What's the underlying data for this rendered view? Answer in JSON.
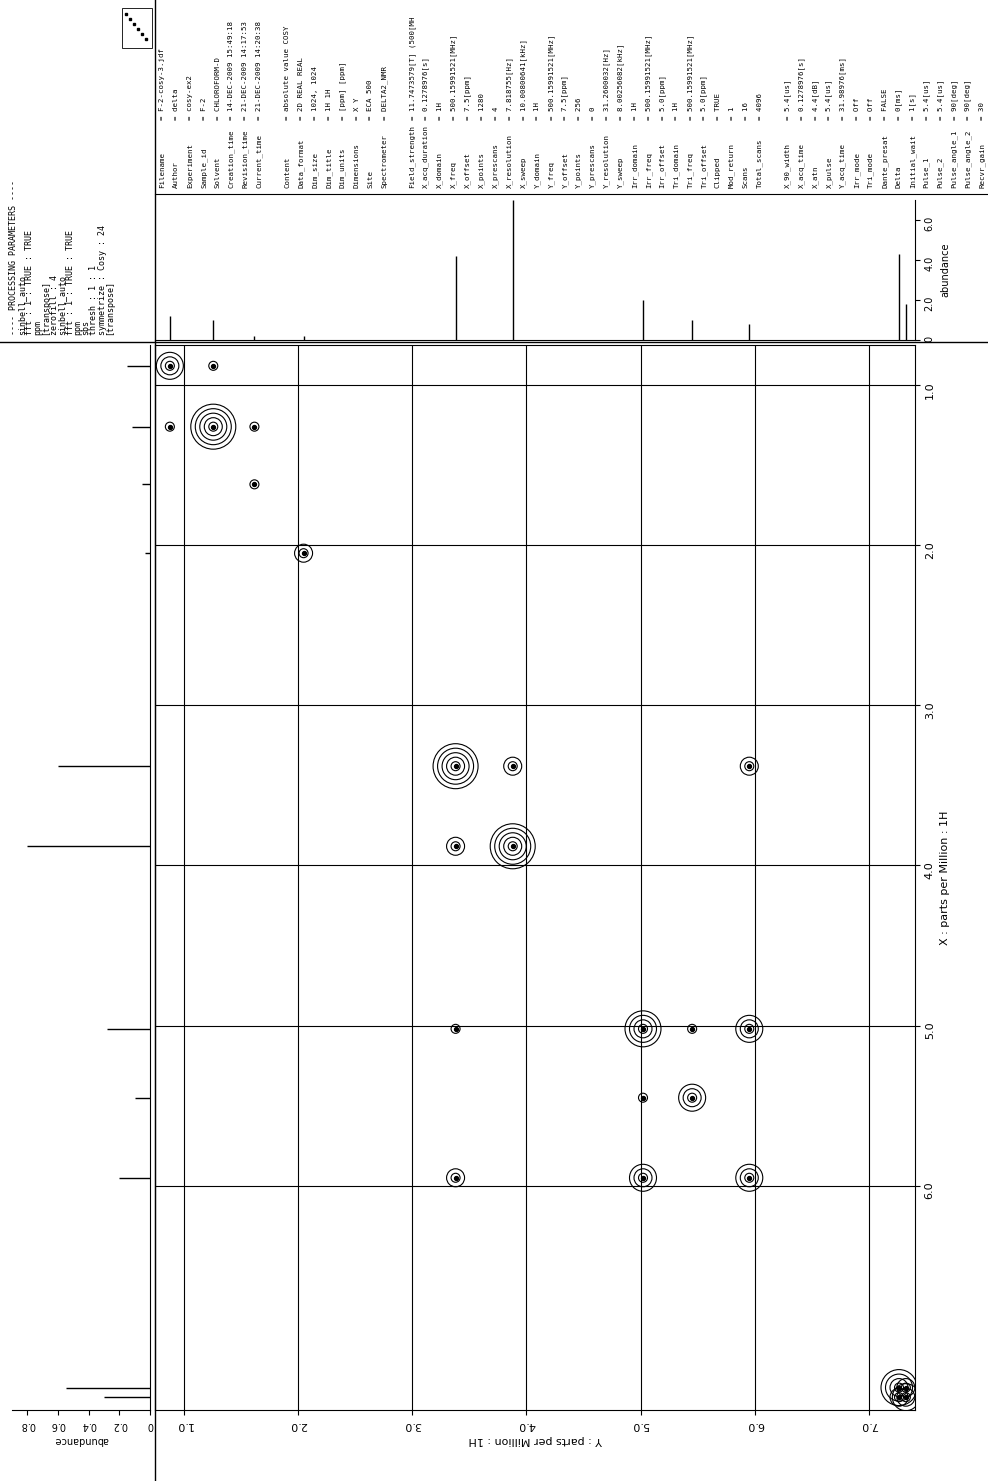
{
  "processing_parameters": [
    "---- PROCESSING PARAMETERS ----",
    "sinbell_auto",
    "fft : 1 : TRUE : TRUE",
    "ppm",
    "[transpose]",
    "zerofill : 4",
    "sinbell_auto",
    "fft : 1 : TRUE : TRUE",
    "ppm",
    "sbs",
    "thresh : 1 : 1",
    "symmetrize : Cosy : 24",
    "[transpose]"
  ],
  "parameters": [
    [
      [
        "Filename",
        "= F-2-cosy-3.jdf"
      ],
      [
        "Author",
        "= delta"
      ],
      [
        "Experiment",
        "= cosy-ex2"
      ],
      [
        "Sample_id",
        "= F-2"
      ],
      [
        "Solvent",
        "= CHLOROFORM-D"
      ],
      [
        "Creation_time",
        "= 14-DEC-2009 15:49:18"
      ],
      [
        "Revision_time",
        "= 21-DEC-2009 14:17:53"
      ],
      [
        "Current_time",
        "= 21-DEC-2009 14:20:38"
      ]
    ],
    [
      [
        "Content",
        "= absolute value COSY"
      ],
      [
        "Data_format",
        "= 2D REAL REAL"
      ],
      [
        "Dim_size",
        "= 1024, 1024"
      ],
      [
        "Dim_title",
        "= 1H 1H"
      ],
      [
        "Dim_units",
        "= [ppm] [ppm]"
      ],
      [
        "Dimensions",
        "= X Y"
      ],
      [
        "Site",
        "= ECA 500"
      ],
      [
        "Spectrometer",
        "= DELTA2_NMR"
      ]
    ],
    [
      [
        "Field_strength",
        "= 11.7473579[T] (500[MH"
      ],
      [
        "X_acq_duration",
        "= 0.1278976[s]"
      ],
      [
        "X_domain",
        "= 1H"
      ],
      [
        "X_freq",
        "= 500.15991521[MHz]"
      ],
      [
        "X_offset",
        "= 7.5[ppm]"
      ],
      [
        "X_points",
        "= 1280"
      ],
      [
        "X_prescans",
        "= 4"
      ],
      [
        "X_resolution",
        "= 7.818755[Hz]"
      ],
      [
        "X_sweep",
        "= 10.00800641[kHz]"
      ],
      [
        "Y_domain",
        "= 1H"
      ],
      [
        "Y_freq",
        "= 500.15991521[MHz]"
      ],
      [
        "Y_offset",
        "= 7.5[ppm]"
      ],
      [
        "Y_points",
        "= 256"
      ],
      [
        "Y_prescans",
        "= 0"
      ],
      [
        "Y_resolution",
        "= 31.2600032[Hz]"
      ],
      [
        "Y_sweep",
        "= 8.00256082[kHz]"
      ],
      [
        "Irr_domain",
        "= 1H"
      ],
      [
        "Irr_freq",
        "= 500.15991521[MHz]"
      ],
      [
        "Irr_offset",
        "= 5.0[ppm]"
      ],
      [
        "Tri_domain",
        "= 1H"
      ],
      [
        "Tri_freq",
        "= 500.15991521[MHz]"
      ],
      [
        "Tri_offset",
        "= 5.0[ppm]"
      ],
      [
        "Clipped",
        "= TRUE"
      ],
      [
        "Mod_return",
        "= 1"
      ],
      [
        "Scans",
        "= 16"
      ],
      [
        "Total_scans",
        "= 4096"
      ]
    ],
    [
      [
        "X_90_width",
        "= 5.4[us]"
      ],
      [
        "X_acq_time",
        "= 0.1278976[s]"
      ],
      [
        "X_atn",
        "= 4.4[dB]"
      ],
      [
        "X_pulse",
        "= 5.4[us]"
      ],
      [
        "Y_acq_time",
        "= 31.98976[ms]"
      ],
      [
        "Irr_mode",
        "= Off"
      ],
      [
        "Tri_mode",
        "= Off"
      ],
      [
        "Dante_presat",
        "= FALSE"
      ],
      [
        "Delta",
        "= 0[ms]"
      ],
      [
        "Initial_wait",
        "= 1[s]"
      ],
      [
        "Pulse_1",
        "= 5.4[us]"
      ],
      [
        "Pulse_2",
        "= 5.4[us]"
      ],
      [
        "Pulse_angle_1",
        "= 90[deg]"
      ],
      [
        "Pulse_angle_2",
        "= 90[deg]"
      ],
      [
        "Recvr_gain",
        "= 30"
      ]
    ]
  ],
  "chart_data": [
    {
      "type": "contour",
      "xlabel": "Y : parts per Million : 1H",
      "ylabel": "X : parts per Million : 1H",
      "xlim": [
        0.75,
        7.4
      ],
      "ylim": [
        7.4,
        0.75
      ],
      "xticks": [
        {
          "value": 1,
          "label": "1.0"
        },
        {
          "value": 2,
          "label": "2.0"
        },
        {
          "value": 3,
          "label": "3.0"
        },
        {
          "value": 4,
          "label": "4.0"
        },
        {
          "value": 5,
          "label": "5.0"
        },
        {
          "value": 6,
          "label": "6.0"
        },
        {
          "value": 7,
          "label": "7.0"
        }
      ],
      "yticks": [
        {
          "value": 1,
          "label": "1.0"
        },
        {
          "value": 2,
          "label": "2.0"
        },
        {
          "value": 3,
          "label": "3.0"
        },
        {
          "value": 4,
          "label": "4.0"
        },
        {
          "value": 5,
          "label": "5.0"
        },
        {
          "value": 6,
          "label": "6.0"
        }
      ],
      "grid": true,
      "color": "#000000",
      "x": [
        0.88,
        1.26,
        1.62,
        2.05,
        3.38,
        3.88,
        5.02,
        5.45,
        5.95,
        7.26,
        7.32,
        0.88,
        1.26,
        1.62,
        3.38,
        3.88,
        3.38,
        3.38,
        5.95,
        5.02,
        5.95,
        5.02,
        5.45,
        7.26,
        7.32
      ],
      "y": [
        0.88,
        1.26,
        1.62,
        2.05,
        3.38,
        3.88,
        5.02,
        5.45,
        5.95,
        7.26,
        7.32,
        1.26,
        0.88,
        1.26,
        3.88,
        3.38,
        5.02,
        5.95,
        3.38,
        5.95,
        5.02,
        5.45,
        5.02,
        7.32,
        7.26
      ],
      "intensity": [
        3,
        5,
        1,
        2,
        5,
        5,
        4,
        3,
        3,
        4,
        3,
        1,
        1,
        1,
        2,
        2,
        1,
        2,
        2,
        3,
        3,
        1,
        1,
        2,
        2
      ]
    },
    {
      "type": "spectrum",
      "ylabel": "abundance",
      "xlim": [
        0.75,
        7.4
      ],
      "ylim": [
        0,
        7
      ],
      "yticks": [
        0,
        {
          "value": 2,
          "label": "2.0"
        },
        {
          "value": 4,
          "label": "4.0"
        },
        {
          "value": 6,
          "label": "6.0"
        }
      ],
      "tick_labels": "y",
      "color": "#000000",
      "x": [
        0.88,
        1.26,
        1.62,
        2.05,
        3.38,
        3.88,
        5.02,
        5.45,
        5.95,
        7.26,
        7.32
      ],
      "values": [
        1.2,
        1.0,
        0.2,
        0.2,
        4.2,
        7.0,
        2.0,
        1.0,
        0.8,
        4.3,
        1.8
      ]
    },
    {
      "type": "spectrum",
      "orientation": "horizontal",
      "xlabel": "abundance",
      "xlim": [
        0.9,
        0
      ],
      "ylim": [
        7.4,
        0.75
      ],
      "xticks": [
        0,
        0.2,
        0.4,
        0.6,
        0.8
      ],
      "tick_labels": "x",
      "color": "#000000",
      "x": [
        0.88,
        1.26,
        1.62,
        2.05,
        3.38,
        3.88,
        5.02,
        5.45,
        5.95,
        7.26,
        7.32
      ],
      "values": [
        0.15,
        0.12,
        0.05,
        0.03,
        0.6,
        0.8,
        0.28,
        0.1,
        0.2,
        0.55,
        0.3
      ]
    }
  ]
}
